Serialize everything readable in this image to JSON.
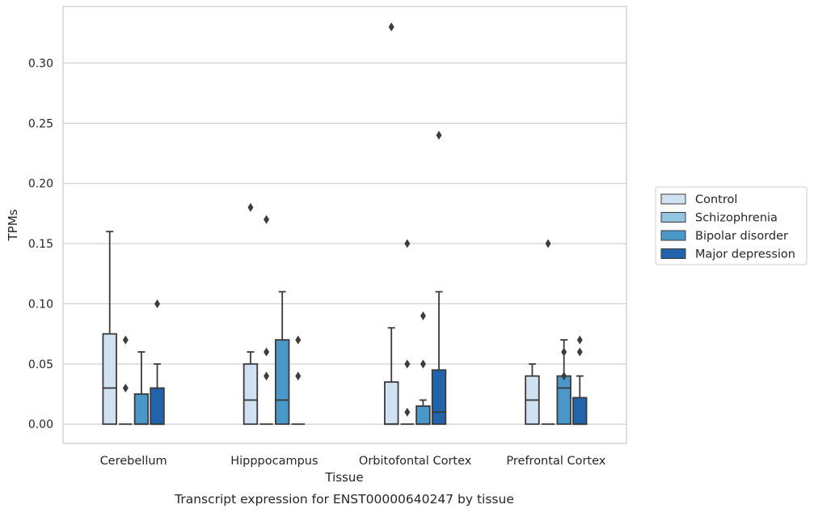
{
  "chart_data": {
    "type": "box",
    "title": "Transcript expression for ENST00000640247 by tissue",
    "xlabel": "Tissue",
    "ylabel": "TPMs",
    "ylim": [
      -0.016,
      0.347
    ],
    "yticks": [
      0.0,
      0.05,
      0.1,
      0.15,
      0.2,
      0.25,
      0.3
    ],
    "ytick_labels": [
      "0.00",
      "0.05",
      "0.10",
      "0.15",
      "0.20",
      "0.25",
      "0.30"
    ],
    "grid": "horizontal",
    "legend_position": "right",
    "categories": [
      "Cerebellum",
      "Hipppocampus",
      "Orbitofontal Cortex",
      "Prefrontal Cortex"
    ],
    "series": [
      {
        "name": "Control",
        "color": "#d0e1f2",
        "boxes": [
          {
            "min": 0.0,
            "q1": 0.0,
            "median": 0.03,
            "q3": 0.075,
            "max": 0.16,
            "outliers": []
          },
          {
            "min": 0.0,
            "q1": 0.0,
            "median": 0.02,
            "q3": 0.05,
            "max": 0.06,
            "outliers": [
              0.18
            ]
          },
          {
            "min": 0.0,
            "q1": 0.0,
            "median": 0.0,
            "q3": 0.035,
            "max": 0.08,
            "outliers": [
              0.33
            ]
          },
          {
            "min": 0.0,
            "q1": 0.0,
            "median": 0.02,
            "q3": 0.04,
            "max": 0.05,
            "outliers": []
          }
        ]
      },
      {
        "name": "Schizophrenia",
        "color": "#94c4df",
        "boxes": [
          {
            "min": 0.0,
            "q1": 0.0,
            "median": 0.0,
            "q3": 0.0,
            "max": 0.0,
            "outliers": [
              0.07,
              0.03
            ]
          },
          {
            "min": 0.0,
            "q1": 0.0,
            "median": 0.0,
            "q3": 0.0,
            "max": 0.0,
            "outliers": [
              0.17,
              0.06,
              0.04
            ]
          },
          {
            "min": 0.0,
            "q1": 0.0,
            "median": 0.0,
            "q3": 0.0,
            "max": 0.0,
            "outliers": [
              0.15,
              0.05,
              0.01
            ]
          },
          {
            "min": 0.0,
            "q1": 0.0,
            "median": 0.0,
            "q3": 0.0,
            "max": 0.0,
            "outliers": [
              0.15
            ]
          }
        ]
      },
      {
        "name": "Bipolar disorder",
        "color": "#4a98c9",
        "boxes": [
          {
            "min": 0.0,
            "q1": 0.0,
            "median": 0.0,
            "q3": 0.025,
            "max": 0.06,
            "outliers": []
          },
          {
            "min": 0.0,
            "q1": 0.0,
            "median": 0.02,
            "q3": 0.07,
            "max": 0.11,
            "outliers": []
          },
          {
            "min": 0.0,
            "q1": 0.0,
            "median": 0.0,
            "q3": 0.015,
            "max": 0.02,
            "outliers": [
              0.09,
              0.05
            ]
          },
          {
            "min": 0.0,
            "q1": 0.0,
            "median": 0.03,
            "q3": 0.04,
            "max": 0.07,
            "outliers": [
              0.06,
              0.04
            ]
          }
        ]
      },
      {
        "name": "Major depression",
        "color": "#2164ab",
        "boxes": [
          {
            "min": 0.0,
            "q1": 0.0,
            "median": 0.0,
            "q3": 0.03,
            "max": 0.05,
            "outliers": [
              0.1
            ]
          },
          {
            "min": 0.0,
            "q1": 0.0,
            "median": 0.0,
            "q3": 0.0,
            "max": 0.0,
            "outliers": [
              0.07,
              0.04
            ]
          },
          {
            "min": 0.0,
            "q1": 0.0,
            "median": 0.01,
            "q3": 0.045,
            "max": 0.11,
            "outliers": [
              0.24
            ]
          },
          {
            "min": 0.0,
            "q1": 0.0,
            "median": 0.0,
            "q3": 0.022,
            "max": 0.04,
            "outliers": [
              0.07,
              0.06
            ]
          }
        ]
      }
    ]
  }
}
